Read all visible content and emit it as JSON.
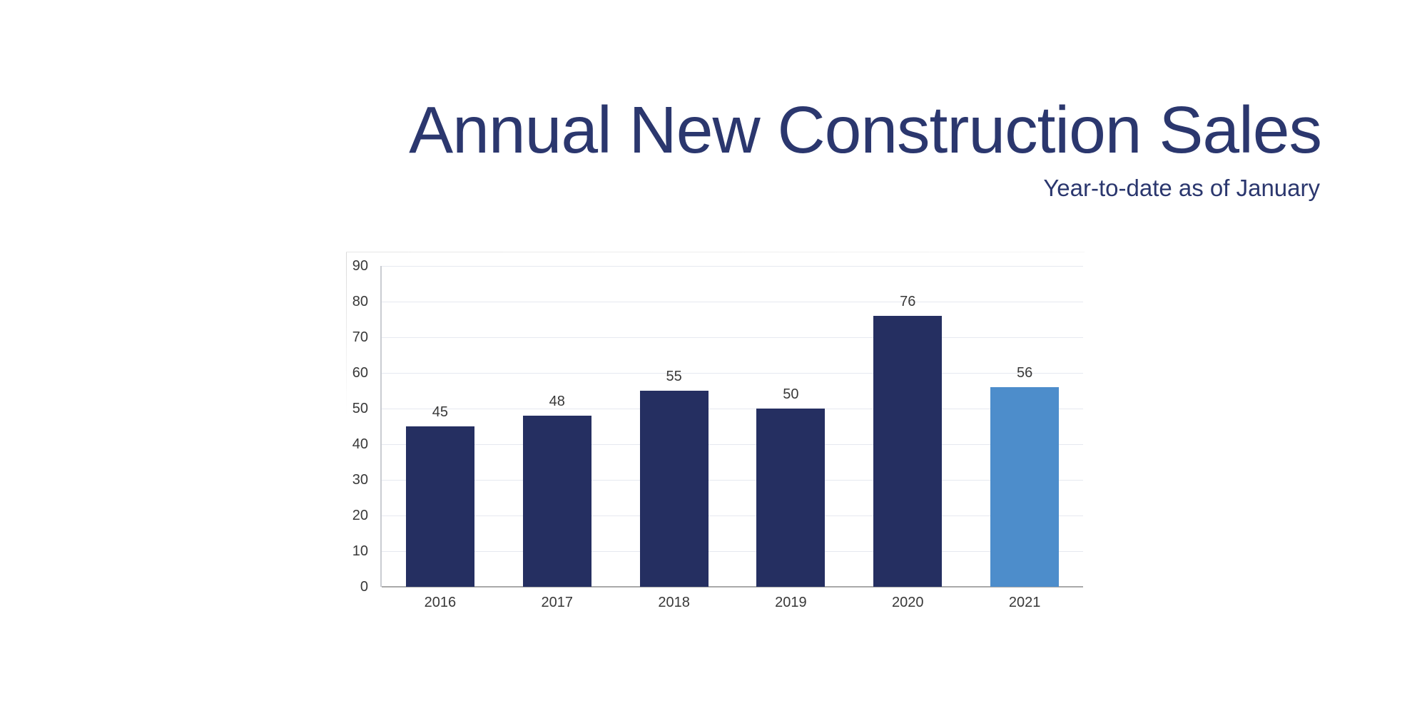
{
  "header": {
    "title": "Annual New Construction Sales",
    "subtitle": "Year-to-date as of January"
  },
  "chart_data": {
    "type": "bar",
    "title": "Annual New Construction Sales",
    "subtitle": "Year-to-date as of January",
    "categories": [
      "2016",
      "2017",
      "2018",
      "2019",
      "2020",
      "2021"
    ],
    "values": [
      45,
      48,
      55,
      50,
      76,
      56
    ],
    "data_labels": [
      45,
      48,
      55,
      50,
      76,
      56
    ],
    "highlight_index": 5,
    "ylim": [
      0,
      90
    ],
    "yticks": [
      0,
      10,
      20,
      30,
      40,
      50,
      60,
      70,
      80,
      90
    ],
    "grid": true,
    "legend": "none",
    "colors": {
      "bar": "#252f61",
      "highlight_bar": "#4d8dcb",
      "title_text": "#2b376e",
      "tick_text": "#383838",
      "gridline": "#e6e9f0",
      "y_axis_line": "#c9ccd2",
      "x_axis_line": "#a9a9a9"
    }
  }
}
